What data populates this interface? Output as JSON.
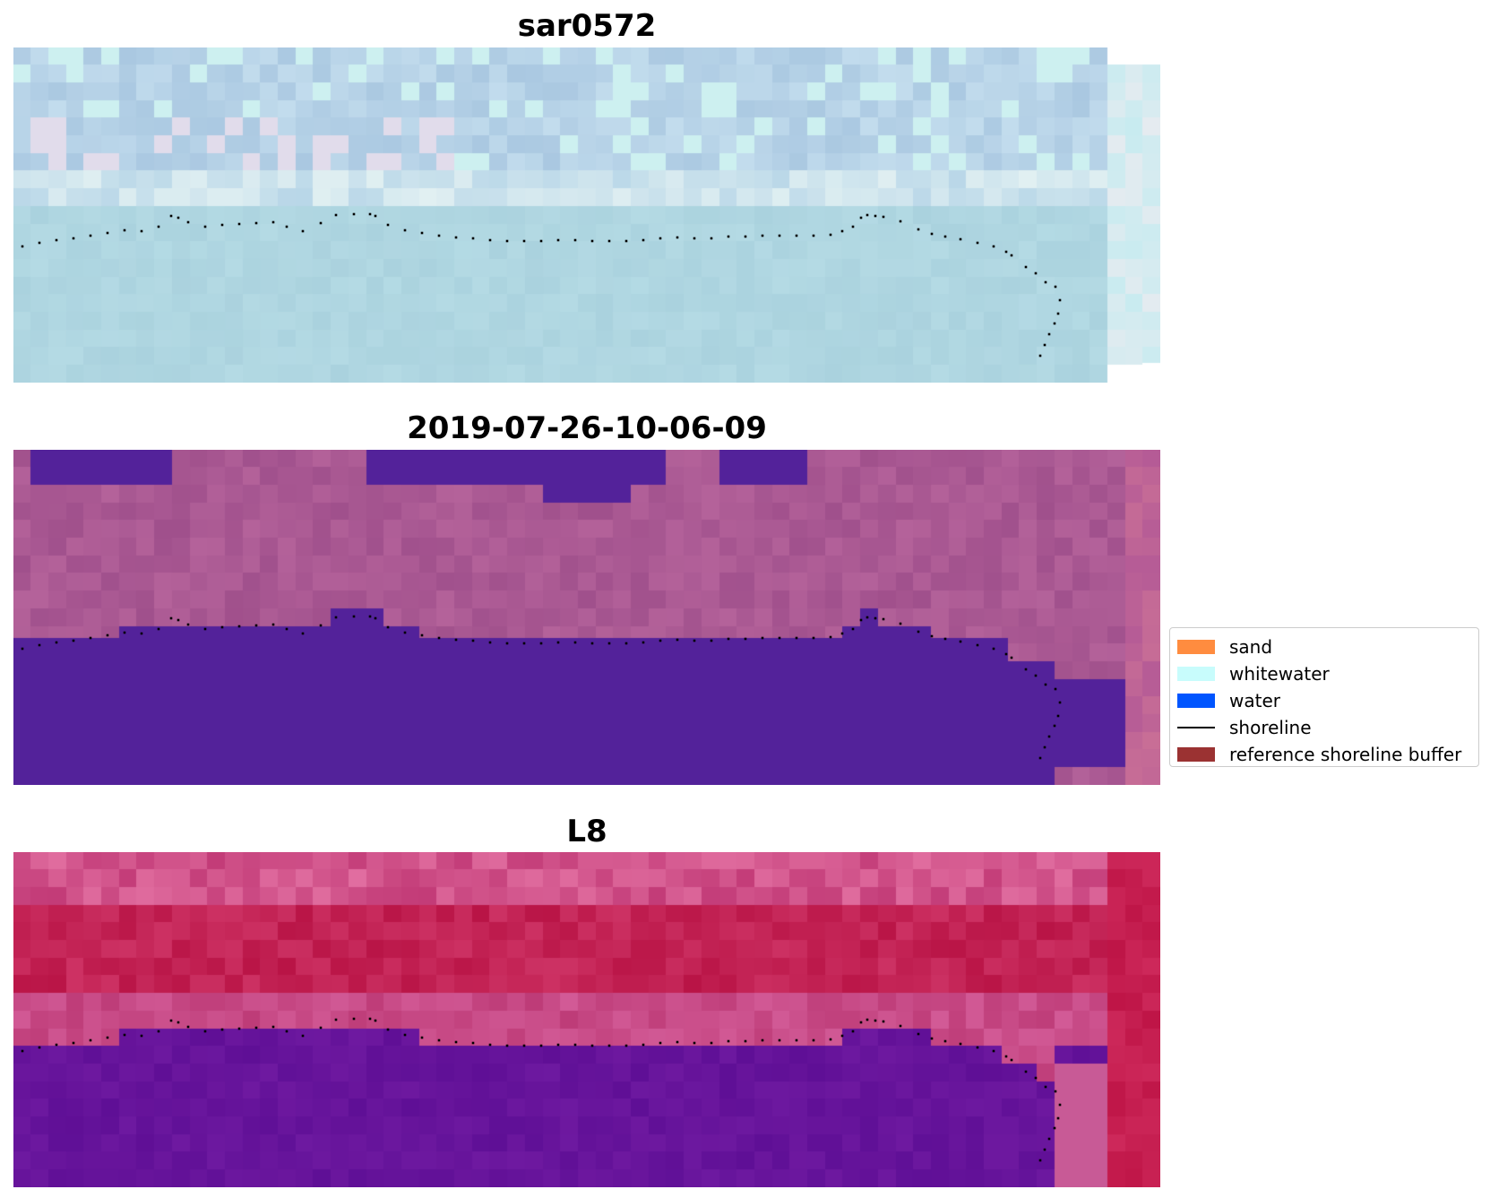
{
  "panels": [
    {
      "title": "sar0572",
      "style": "sar"
    },
    {
      "title": "2019-07-26-10-06-09",
      "style": "classified"
    },
    {
      "title": "L8",
      "style": "l8"
    }
  ],
  "legend": [
    {
      "label": "sand",
      "kind": "patch",
      "color": "#ff8c3f"
    },
    {
      "label": "whitewater",
      "kind": "patch",
      "color": "#c8fcfc"
    },
    {
      "label": "water",
      "kind": "patch",
      "color": "#0055ff"
    },
    {
      "label": "shoreline",
      "kind": "line",
      "color": "#000000"
    },
    {
      "label": "reference shoreline buffer",
      "kind": "patch",
      "color": "#9b3232"
    }
  ],
  "shoreline_color": "#000000"
}
